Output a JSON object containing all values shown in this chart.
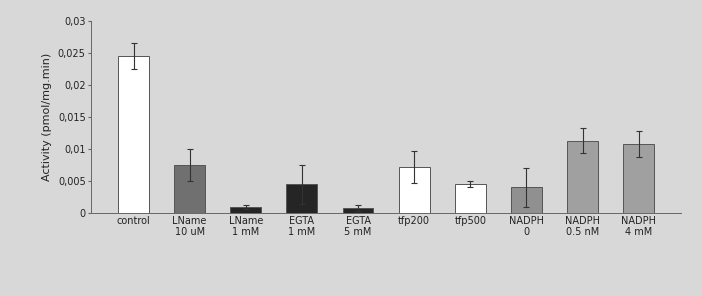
{
  "categories": [
    "control",
    "LName\n10 uM",
    "LName\n1 mM",
    "EGTA\n1 mM",
    "EGTA\n5 mM",
    "tfp200",
    "tfp500",
    "NADPH\n0",
    "NADPH\n0.5 nM",
    "NADPH\n4 mM"
  ],
  "values": [
    0.0245,
    0.0075,
    0.001,
    0.0045,
    0.0008,
    0.0072,
    0.0045,
    0.004,
    0.0113,
    0.0108
  ],
  "errors": [
    0.002,
    0.0025,
    0.0003,
    0.003,
    0.0005,
    0.0025,
    0.0005,
    0.003,
    0.002,
    0.002
  ],
  "bar_colors": [
    "#ffffff",
    "#707070",
    "#252525",
    "#252525",
    "#252525",
    "#ffffff",
    "#ffffff",
    "#909090",
    "#a0a0a0",
    "#a0a0a0"
  ],
  "bar_edgecolors": [
    "#555555",
    "#555555",
    "#555555",
    "#555555",
    "#555555",
    "#555555",
    "#555555",
    "#555555",
    "#555555",
    "#555555"
  ],
  "ylabel": "Activity (pmol/mg.min)",
  "ylim": [
    0,
    0.03
  ],
  "yticks": [
    0,
    0.005,
    0.01,
    0.015,
    0.02,
    0.025,
    0.03
  ],
  "ytick_labels": [
    "0",
    "0,005",
    "0,01",
    "0,015",
    "0,02",
    "0,025",
    "0,03"
  ],
  "background_color": "#d8d8d8",
  "plot_bg_color": "#d8d8d8",
  "bar_width": 0.55,
  "ylabel_fontsize": 8,
  "tick_fontsize": 7,
  "xlabel_fontsize": 7
}
